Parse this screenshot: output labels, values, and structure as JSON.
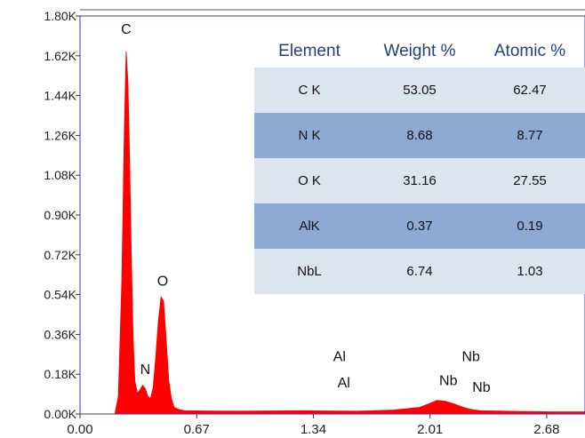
{
  "chart_data": {
    "type": "area",
    "title": "",
    "xlabel": "",
    "ylabel": "",
    "xlim": [
      0.0,
      2.9
    ],
    "ylim": [
      0,
      1800
    ],
    "x_ticks": [
      "0.00",
      "0.67",
      "1.34",
      "2.01",
      "2.68"
    ],
    "x_tick_values": [
      0.0,
      0.67,
      1.34,
      2.01,
      2.68
    ],
    "y_ticks": [
      "0.00K",
      "0.18K",
      "0.36K",
      "0.54K",
      "0.72K",
      "0.90K",
      "1.08K",
      "1.26K",
      "1.44K",
      "1.62K",
      "1.80K"
    ],
    "y_tick_values": [
      0,
      180,
      360,
      540,
      720,
      900,
      1080,
      1260,
      1440,
      1620,
      1800
    ],
    "grid": false,
    "fill_color": "#ff0000",
    "frame_color": "#3333cc",
    "series": [
      {
        "x": [
          0.0,
          0.2,
          0.22,
          0.24,
          0.255,
          0.265,
          0.275,
          0.285,
          0.295,
          0.305,
          0.315,
          0.33,
          0.345,
          0.36,
          0.375,
          0.39,
          0.405,
          0.42,
          0.435,
          0.45,
          0.465,
          0.48,
          0.495,
          0.51,
          0.525,
          0.54,
          0.555,
          0.57,
          0.6,
          0.7,
          0.9,
          1.1,
          1.3,
          1.4,
          1.6,
          1.8,
          1.95,
          2.0,
          2.05,
          2.1,
          2.15,
          2.2,
          2.25,
          2.3,
          2.5,
          2.7,
          2.9
        ],
        "values": [
          0,
          0,
          80,
          600,
          1300,
          1640,
          1500,
          1150,
          700,
          350,
          150,
          95,
          110,
          130,
          115,
          80,
          70,
          120,
          260,
          420,
          530,
          510,
          330,
          150,
          70,
          30,
          25,
          20,
          15,
          14,
          13,
          14,
          15,
          14,
          13,
          18,
          30,
          45,
          62,
          58,
          45,
          30,
          20,
          15,
          12,
          10,
          10
        ]
      }
    ],
    "peak_labels": [
      {
        "text": "C",
        "x": 0.265,
        "y": 1720
      },
      {
        "text": "N",
        "x": 0.375,
        "y": 180
      },
      {
        "text": "O",
        "x": 0.475,
        "y": 580
      },
      {
        "text": "Al",
        "x": 1.49,
        "y": 240
      },
      {
        "text": "Al",
        "x": 1.515,
        "y": 120
      },
      {
        "text": "Nb",
        "x": 2.245,
        "y": 240
      },
      {
        "text": "Nb",
        "x": 2.115,
        "y": 130
      },
      {
        "text": "Nb",
        "x": 2.305,
        "y": 100
      }
    ],
    "table": {
      "headers": [
        "Element",
        "Weight %",
        "Atomic %"
      ],
      "rows": [
        [
          "C K",
          "53.05",
          "62.47"
        ],
        [
          "N K",
          "8.68",
          "8.77"
        ],
        [
          "O K",
          "31.16",
          "27.55"
        ],
        [
          "AlK",
          "0.37",
          "0.19"
        ],
        [
          "NbL",
          "6.74",
          "1.03"
        ]
      ]
    }
  }
}
